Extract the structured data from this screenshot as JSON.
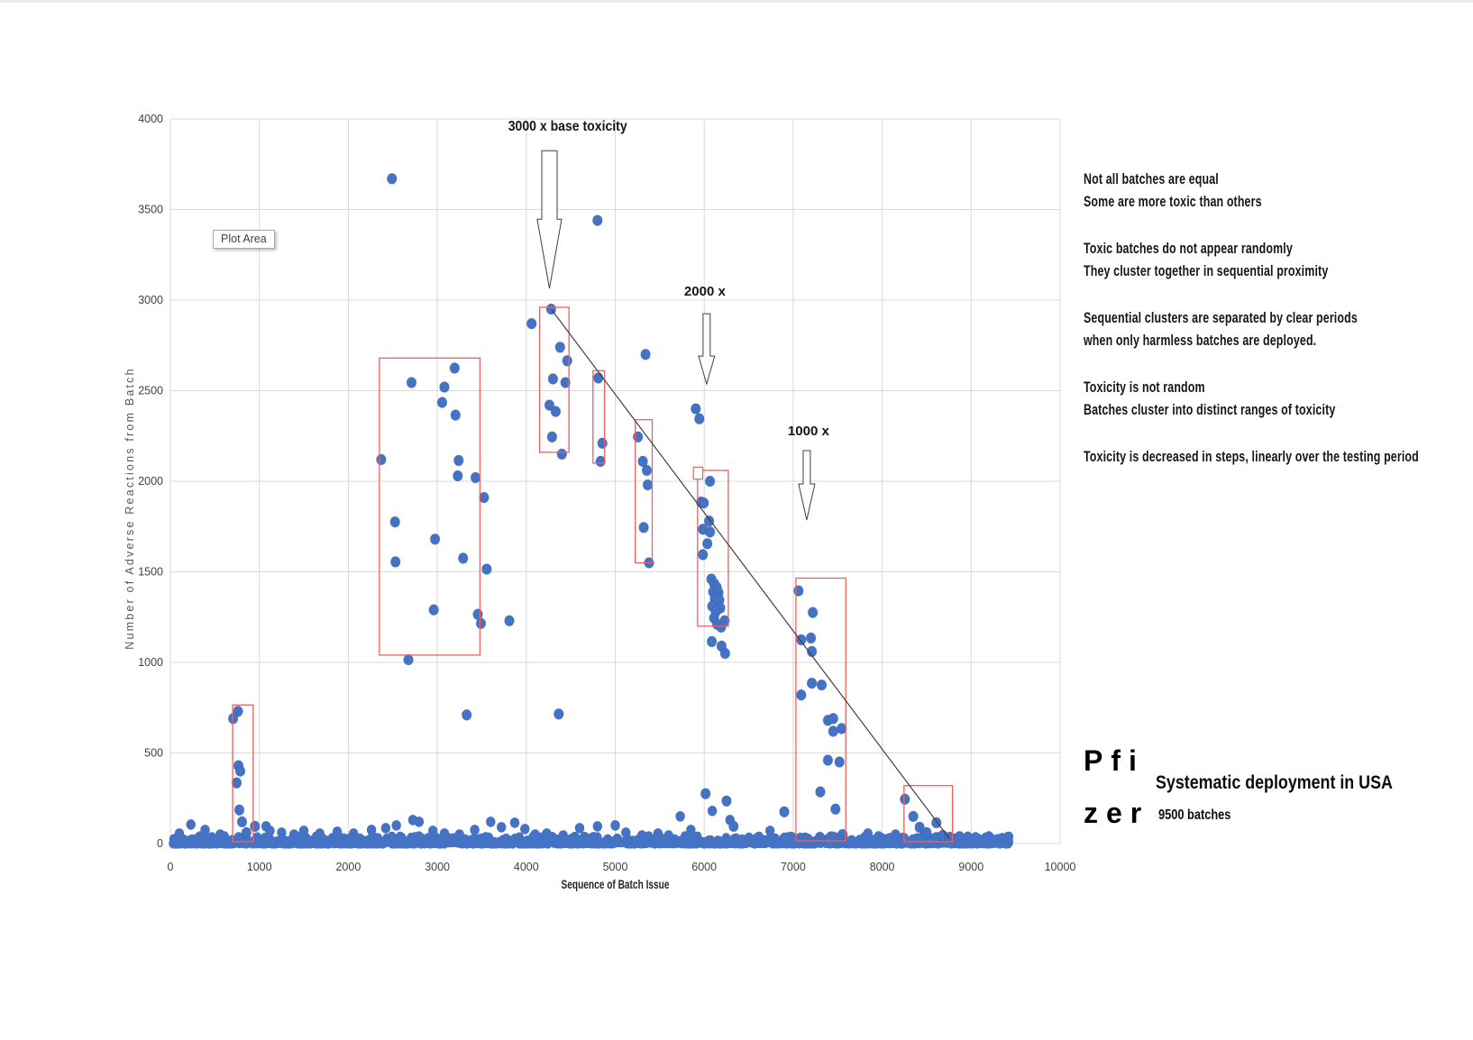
{
  "chart_data": {
    "type": "scatter",
    "title": "",
    "xlabel": "Sequence of Batch Issue",
    "ylabel": "Number of Adverse Reactions from Batch",
    "xlim": [
      0,
      10000
    ],
    "ylim": [
      0,
      4000
    ],
    "x_ticks": [
      0,
      1000,
      2000,
      3000,
      4000,
      5000,
      6000,
      7000,
      8000,
      9000,
      10000
    ],
    "y_ticks": [
      0,
      500,
      1000,
      1500,
      2000,
      2500,
      3000,
      3500,
      4000
    ],
    "grid": true,
    "legend_position": "none",
    "plot_area_label": "Plot Area",
    "colors": {
      "point": "#4472c4",
      "point_edge": "#2f5597",
      "cluster_box": "#f15f5f",
      "trend": "#404040",
      "grid": "#d9d9d9",
      "axis_text": "#3f3f3f",
      "axis_title": "#595959",
      "annotation_text": "#161616"
    },
    "points": [
      [
        2490,
        3670
      ],
      [
        4800,
        3440
      ],
      [
        760,
        730
      ],
      [
        705,
        690
      ],
      [
        765,
        430
      ],
      [
        785,
        400
      ],
      [
        745,
        335
      ],
      [
        775,
        185
      ],
      [
        805,
        120
      ],
      [
        855,
        60
      ],
      [
        950,
        95
      ],
      [
        2370,
        2120
      ],
      [
        2710,
        2545
      ],
      [
        3195,
        2625
      ],
      [
        3080,
        2520
      ],
      [
        3055,
        2435
      ],
      [
        3205,
        2365
      ],
      [
        3240,
        2115
      ],
      [
        3230,
        2030
      ],
      [
        3430,
        2020
      ],
      [
        3525,
        1910
      ],
      [
        2525,
        1775
      ],
      [
        2975,
        1680
      ],
      [
        2530,
        1555
      ],
      [
        3290,
        1575
      ],
      [
        3555,
        1515
      ],
      [
        2960,
        1290
      ],
      [
        3455,
        1265
      ],
      [
        3490,
        1215
      ],
      [
        3810,
        1230
      ],
      [
        2675,
        1015
      ],
      [
        3330,
        710
      ],
      [
        4365,
        715
      ],
      [
        4060,
        2870
      ],
      [
        4280,
        2950
      ],
      [
        4380,
        2740
      ],
      [
        4460,
        2665
      ],
      [
        4300,
        2565
      ],
      [
        4440,
        2545
      ],
      [
        4260,
        2420
      ],
      [
        4330,
        2385
      ],
      [
        4290,
        2245
      ],
      [
        4400,
        2150
      ],
      [
        4810,
        2570
      ],
      [
        4855,
        2210
      ],
      [
        4835,
        2110
      ],
      [
        5340,
        2700
      ],
      [
        5255,
        2245
      ],
      [
        5310,
        2110
      ],
      [
        5355,
        2060
      ],
      [
        5365,
        1980
      ],
      [
        5320,
        1745
      ],
      [
        5380,
        1550
      ],
      [
        5905,
        2400
      ],
      [
        5945,
        2345
      ],
      [
        6065,
        2000
      ],
      [
        5965,
        1885
      ],
      [
        5995,
        1880
      ],
      [
        6055,
        1780
      ],
      [
        5985,
        1735
      ],
      [
        6065,
        1720
      ],
      [
        6035,
        1655
      ],
      [
        5985,
        1595
      ],
      [
        6080,
        1460
      ],
      [
        6110,
        1435
      ],
      [
        6140,
        1415
      ],
      [
        6100,
        1390
      ],
      [
        6160,
        1385
      ],
      [
        6120,
        1350
      ],
      [
        6170,
        1345
      ],
      [
        6090,
        1310
      ],
      [
        6180,
        1300
      ],
      [
        6130,
        1280
      ],
      [
        6110,
        1245
      ],
      [
        6145,
        1210
      ],
      [
        6190,
        1195
      ],
      [
        6230,
        1230
      ],
      [
        6085,
        1115
      ],
      [
        6195,
        1090
      ],
      [
        6235,
        1050
      ],
      [
        6015,
        275
      ],
      [
        6250,
        235
      ],
      [
        6330,
        95
      ],
      [
        6900,
        175
      ],
      [
        7060,
        1395
      ],
      [
        7220,
        1275
      ],
      [
        7090,
        1125
      ],
      [
        7200,
        1135
      ],
      [
        7210,
        1060
      ],
      [
        7210,
        885
      ],
      [
        7320,
        875
      ],
      [
        7090,
        820
      ],
      [
        7390,
        680
      ],
      [
        7450,
        690
      ],
      [
        7450,
        620
      ],
      [
        7545,
        635
      ],
      [
        7390,
        460
      ],
      [
        7520,
        450
      ],
      [
        7305,
        285
      ],
      [
        7475,
        190
      ],
      [
        7150,
        25
      ],
      [
        7300,
        35
      ],
      [
        7555,
        50
      ],
      [
        8255,
        245
      ],
      [
        8350,
        150
      ],
      [
        8420,
        90
      ],
      [
        8500,
        60
      ],
      [
        8610,
        115
      ],
      [
        8680,
        45
      ],
      [
        8760,
        35
      ]
    ],
    "bump_points": [
      [
        100,
        55
      ],
      [
        230,
        105
      ],
      [
        390,
        75
      ],
      [
        560,
        50
      ],
      [
        1075,
        95
      ],
      [
        1120,
        70
      ],
      [
        1250,
        60
      ],
      [
        1390,
        50
      ],
      [
        1500,
        70
      ],
      [
        1680,
        55
      ],
      [
        1875,
        65
      ],
      [
        2060,
        55
      ],
      [
        2260,
        75
      ],
      [
        2420,
        85
      ],
      [
        2540,
        100
      ],
      [
        2725,
        130
      ],
      [
        2795,
        120
      ],
      [
        2950,
        70
      ],
      [
        3080,
        55
      ],
      [
        3250,
        50
      ],
      [
        3420,
        75
      ],
      [
        3600,
        120
      ],
      [
        3720,
        90
      ],
      [
        3870,
        115
      ],
      [
        3985,
        80
      ],
      [
        4100,
        50
      ],
      [
        4230,
        55
      ],
      [
        4415,
        45
      ],
      [
        4600,
        85
      ],
      [
        4800,
        95
      ],
      [
        5000,
        100
      ],
      [
        5120,
        60
      ],
      [
        5300,
        45
      ],
      [
        5480,
        55
      ],
      [
        5600,
        45
      ],
      [
        5730,
        150
      ],
      [
        5850,
        75
      ],
      [
        6090,
        180
      ],
      [
        6290,
        130
      ],
      [
        6740,
        70
      ],
      [
        7840,
        55
      ],
      [
        7960,
        40
      ],
      [
        8150,
        50
      ],
      [
        8870,
        40
      ],
      [
        9050,
        35
      ],
      [
        9200,
        40
      ],
      [
        9350,
        30
      ]
    ],
    "baseline_band": {
      "x_min": 30,
      "x_max": 9440,
      "y_max": 40,
      "count": 850,
      "seed": 12
    },
    "cluster_boxes": [
      [
        700,
        10,
        930,
        765
      ],
      [
        2350,
        1040,
        3480,
        2680
      ],
      [
        4150,
        2160,
        4480,
        2960
      ],
      [
        4750,
        2100,
        4880,
        2610
      ],
      [
        5225,
        1550,
        5415,
        2340
      ],
      [
        5925,
        1200,
        6270,
        2060
      ],
      [
        7030,
        15,
        7590,
        1465
      ],
      [
        8245,
        10,
        8790,
        320
      ]
    ],
    "mini_box": [
      5878,
      2012,
      5982,
      2078
    ],
    "trend_line": [
      4280,
      2950,
      8760,
      25
    ],
    "arrows": [
      {
        "id": "arrow-3000x",
        "label": "3000 x base toxicity",
        "cx": 4260,
        "top": 3825,
        "head_start": 3447,
        "tip": 3064,
        "shaft_hw": 86,
        "head_hw": 137,
        "label_x": 4465,
        "label_y": 3935,
        "label_len": 132,
        "label_size": 15.5
      },
      {
        "id": "arrow-2000x",
        "label": "2000 x",
        "cx": 6027,
        "top": 2925,
        "head_start": 2691,
        "tip": 2537,
        "shaft_hw": 40,
        "head_hw": 91,
        "label_x": 6007,
        "label_y": 3025,
        "label_len": 46,
        "label_size": 15
      },
      {
        "id": "arrow-1000x",
        "label": "1000 x",
        "cx": 7152,
        "top": 2169,
        "head_start": 1985,
        "tip": 1786,
        "shaft_hw": 40,
        "head_hw": 91,
        "label_x": 7172,
        "label_y": 2254,
        "label_len": 46,
        "label_size": 15
      }
    ]
  },
  "annotations": {
    "paragraphs": [
      {
        "lines": [
          "Not all batches are equal",
          "Some are more toxic than others"
        ]
      },
      {
        "lines": [
          "Toxic batches do not appear randomly",
          "They cluster together in sequential proximity"
        ]
      },
      {
        "lines": [
          "Sequential clusters are separated by clear periods",
          "when only harmless batches are deployed."
        ]
      },
      {
        "lines": [
          "Toxicity is not random",
          "Batches cluster into distinct ranges of toxicity"
        ]
      },
      {
        "lines": [
          "Toxicity is decreased in steps, linearly over the testing period"
        ]
      }
    ]
  },
  "brand": {
    "wordmark_line1": "Pfi",
    "wordmark_line2": "zer",
    "heading": "Systematic deployment in USA",
    "subheading": "9500 batches"
  }
}
